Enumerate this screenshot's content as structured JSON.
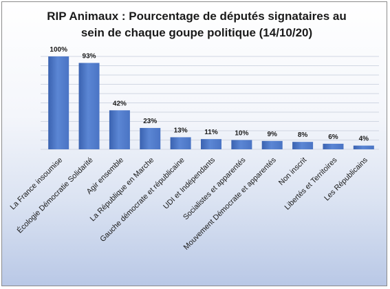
{
  "chart_data": {
    "type": "bar",
    "title_lines": [
      "RIP Animaux : Pourcentage de députés signataires au",
      "sein de chaque goupe politique (14/10/20)"
    ],
    "categories": [
      "La France insoumise",
      "Écologie Démocratie Solidarité",
      "Agir ensemble",
      "La République en Marche",
      "Gauche démocrate et républicaine",
      "UDI et Indépendants",
      "Socialistes et apparentés",
      "Mouvement Démocrate et apparentés",
      "Non inscrit",
      "Libertés et Territoires",
      "Les Républicains"
    ],
    "values": [
      100,
      93,
      42,
      23,
      13,
      11,
      10,
      9,
      8,
      6,
      4
    ],
    "value_labels": [
      "100%",
      "93%",
      "42%",
      "23%",
      "13%",
      "11%",
      "10%",
      "9%",
      "8%",
      "6%",
      "4%"
    ],
    "ylim": [
      0,
      100
    ],
    "grid": true,
    "legend": "none",
    "colors": {
      "bar": "#4a74c4",
      "bar_light": "#5b86d4",
      "bar_dark": "#3a62b0"
    }
  }
}
